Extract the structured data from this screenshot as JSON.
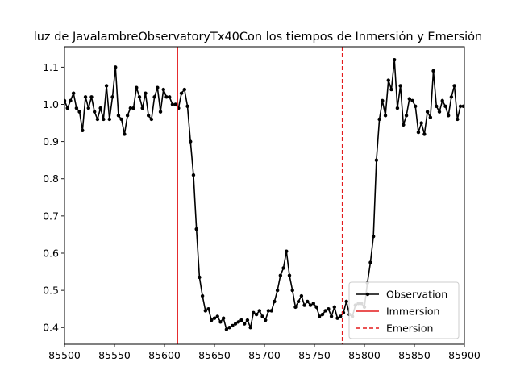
{
  "chart_data": {
    "type": "line",
    "title": "luz de JavalambreObservatoryTx40Con los tiempos de Inmersión y Emersión",
    "xlabel": "",
    "ylabel": "",
    "xlim": [
      85500,
      85900
    ],
    "ylim": [
      0.355,
      1.155
    ],
    "xticks": [
      85500,
      85550,
      85600,
      85650,
      85700,
      85750,
      85800,
      85850,
      85900
    ],
    "yticks": [
      0.4,
      0.5,
      0.6,
      0.7,
      0.8,
      0.9,
      1.0,
      1.1
    ],
    "xtick_labels": [
      "85500",
      "85550",
      "85600",
      "85650",
      "85700",
      "85750",
      "85800",
      "85850",
      "85900"
    ],
    "ytick_labels": [
      "0.4",
      "0.5",
      "0.6",
      "0.7",
      "0.8",
      "0.9",
      "1.0",
      "1.1"
    ],
    "grid": false,
    "legend_position": "lower right",
    "series": [
      {
        "name": "Observation",
        "color": "#000000",
        "marker": "dot",
        "x": [
          85500,
          85503,
          85506,
          85509,
          85512,
          85515,
          85518,
          85521,
          85524,
          85527,
          85530,
          85533,
          85536,
          85539,
          85542,
          85545,
          85548,
          85551,
          85554,
          85557,
          85560,
          85563,
          85566,
          85569,
          85572,
          85575,
          85578,
          85581,
          85584,
          85587,
          85590,
          85593,
          85596,
          85599,
          85602,
          85605,
          85608,
          85611,
          85614,
          85617,
          85620,
          85623,
          85626,
          85629,
          85632,
          85635,
          85638,
          85641,
          85644,
          85647,
          85650,
          85653,
          85656,
          85659,
          85662,
          85665,
          85668,
          85671,
          85674,
          85677,
          85680,
          85683,
          85686,
          85689,
          85692,
          85695,
          85698,
          85701,
          85704,
          85707,
          85710,
          85713,
          85716,
          85719,
          85722,
          85725,
          85728,
          85731,
          85734,
          85737,
          85740,
          85743,
          85746,
          85749,
          85752,
          85755,
          85758,
          85761,
          85764,
          85767,
          85770,
          85773,
          85776,
          85779,
          85782,
          85785,
          85788,
          85791,
          85794,
          85797,
          85800,
          85803,
          85806,
          85809,
          85812,
          85815,
          85818,
          85821,
          85824,
          85827,
          85830,
          85833,
          85836,
          85839,
          85842,
          85845,
          85848,
          85851,
          85854,
          85857,
          85860,
          85863,
          85866,
          85869,
          85872,
          85875,
          85878,
          85881,
          85884,
          85887,
          85890,
          85893,
          85896,
          85899
        ],
        "y": [
          1.01,
          0.99,
          1.01,
          1.03,
          0.99,
          0.98,
          0.93,
          1.02,
          0.99,
          1.02,
          0.98,
          0.96,
          0.99,
          0.96,
          1.05,
          0.96,
          1.02,
          1.1,
          0.97,
          0.96,
          0.92,
          0.97,
          0.99,
          0.99,
          1.045,
          1.02,
          0.99,
          1.03,
          0.97,
          0.96,
          1.02,
          1.045,
          0.98,
          1.04,
          1.02,
          1.02,
          1.0,
          1.0,
          0.99,
          1.03,
          1.04,
          0.995,
          0.9,
          0.81,
          0.665,
          0.535,
          0.485,
          0.445,
          0.45,
          0.42,
          0.425,
          0.43,
          0.415,
          0.425,
          0.395,
          0.4,
          0.405,
          0.41,
          0.415,
          0.42,
          0.41,
          0.42,
          0.4,
          0.44,
          0.435,
          0.445,
          0.43,
          0.42,
          0.445,
          0.445,
          0.47,
          0.5,
          0.54,
          0.56,
          0.605,
          0.54,
          0.5,
          0.455,
          0.47,
          0.485,
          0.46,
          0.47,
          0.46,
          0.465,
          0.455,
          0.43,
          0.435,
          0.445,
          0.45,
          0.43,
          0.455,
          0.425,
          0.43,
          0.44,
          0.47,
          0.435,
          0.43,
          0.46,
          0.465,
          0.465,
          0.455,
          0.52,
          0.575,
          0.645,
          0.85,
          0.96,
          1.01,
          0.97,
          1.065,
          1.04,
          1.12,
          0.99,
          1.05,
          0.945,
          0.97,
          1.015,
          1.01,
          0.995,
          0.925,
          0.95,
          0.92,
          0.98,
          0.965,
          1.09,
          0.995,
          0.98,
          1.01,
          0.995,
          0.97,
          1.02,
          1.05,
          0.96,
          0.995,
          0.995
        ]
      },
      {
        "name": "Immersion",
        "color": "#e31a1c",
        "linestyle": "solid",
        "x_value": 85613
      },
      {
        "name": "Emersion",
        "color": "#e31a1c",
        "linestyle": "dashed",
        "x_value": 85778
      }
    ]
  }
}
